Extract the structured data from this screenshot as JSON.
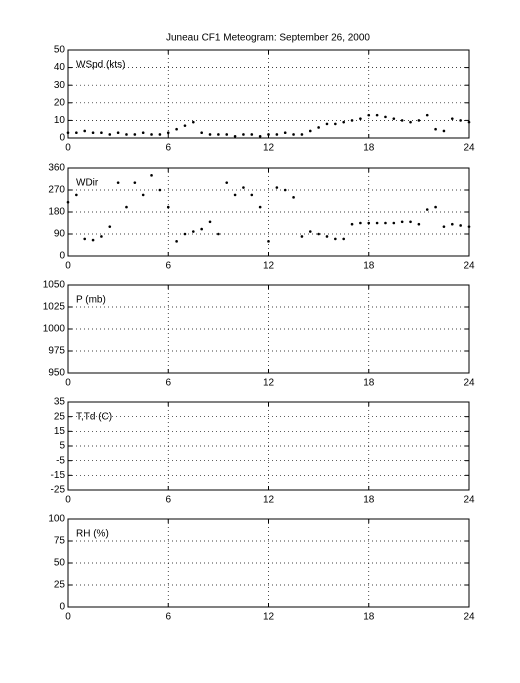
{
  "chart_data": [
    {
      "type": "scatter",
      "title": "Juneau CF1 Meteogram: September 26, 2000",
      "label": "WSpd (kts)",
      "xlim": [
        0,
        24
      ],
      "xticks": [
        0,
        6,
        12,
        18,
        24
      ],
      "ylim": [
        0,
        50
      ],
      "yticks": [
        0,
        10,
        20,
        30,
        40,
        50
      ],
      "grid": true,
      "color": "#000000",
      "x": [
        0,
        0.5,
        1,
        1.5,
        2,
        2.5,
        3,
        3.5,
        4,
        4.5,
        5,
        5.5,
        6,
        6.5,
        7,
        7.5,
        8,
        8.5,
        9,
        9.5,
        10,
        10.5,
        11,
        11.5,
        12,
        12.5,
        13,
        13.5,
        14,
        14.5,
        15,
        15.5,
        16,
        16.5,
        17,
        17.5,
        18,
        18.5,
        19,
        19.5,
        20,
        20.5,
        21,
        21.5,
        22,
        22.5,
        23,
        23.5,
        24
      ],
      "values": [
        3,
        3,
        4,
        3,
        3,
        2,
        3,
        2,
        2,
        3,
        2,
        2,
        3,
        5,
        7,
        9,
        3,
        2,
        2,
        2,
        1,
        2,
        2,
        1,
        2,
        2,
        3,
        2,
        2,
        4,
        6,
        8,
        8,
        9,
        10,
        11,
        13,
        13,
        12,
        11,
        10,
        9,
        10,
        13,
        5,
        4,
        11,
        10,
        9
      ]
    },
    {
      "type": "scatter",
      "label": "WDir",
      "xlim": [
        0,
        24
      ],
      "xticks": [
        0,
        6,
        12,
        18,
        24
      ],
      "ylim": [
        0,
        360
      ],
      "yticks": [
        0,
        90,
        180,
        270,
        360
      ],
      "grid": true,
      "color": "#000000",
      "x": [
        0,
        0.5,
        1,
        1.5,
        2,
        2.5,
        3,
        3.5,
        4,
        4.5,
        5,
        5.5,
        6,
        6.5,
        7,
        7.5,
        8,
        8.5,
        9,
        9.5,
        10,
        10.5,
        11,
        11.5,
        12,
        12.5,
        13,
        13.5,
        14,
        14.5,
        15,
        15.5,
        16,
        16.5,
        17,
        17.5,
        18,
        18.5,
        19,
        19.5,
        20,
        20.5,
        21,
        21.5,
        22,
        22.5,
        23,
        23.5,
        24
      ],
      "values": [
        220,
        250,
        70,
        65,
        80,
        120,
        300,
        200,
        300,
        250,
        330,
        270,
        200,
        60,
        90,
        100,
        110,
        140,
        90,
        300,
        250,
        280,
        250,
        200,
        60,
        280,
        270,
        240,
        80,
        100,
        90,
        80,
        70,
        70,
        130,
        135,
        135,
        135,
        135,
        135,
        140,
        140,
        130,
        190,
        200,
        120,
        130,
        125,
        120
      ]
    },
    {
      "type": "scatter",
      "label": "P (mb)",
      "xlim": [
        0,
        24
      ],
      "xticks": [
        0,
        6,
        12,
        18,
        24
      ],
      "ylim": [
        950,
        1050
      ],
      "yticks": [
        950,
        975,
        1000,
        1025,
        1050
      ],
      "grid": true
    },
    {
      "type": "scatter",
      "label": "T,Td (C)",
      "xlim": [
        0,
        24
      ],
      "xticks": [
        0,
        6,
        12,
        18,
        24
      ],
      "ylim": [
        -25,
        35
      ],
      "yticks": [
        -25,
        -15,
        -5,
        5,
        15,
        25,
        35
      ],
      "grid": true
    },
    {
      "type": "scatter",
      "label": "RH (%)",
      "xlim": [
        0,
        24
      ],
      "xticks": [
        0,
        6,
        12,
        18,
        24
      ],
      "ylim": [
        0,
        100
      ],
      "yticks": [
        0,
        25,
        50,
        75,
        100
      ],
      "grid": true
    }
  ]
}
